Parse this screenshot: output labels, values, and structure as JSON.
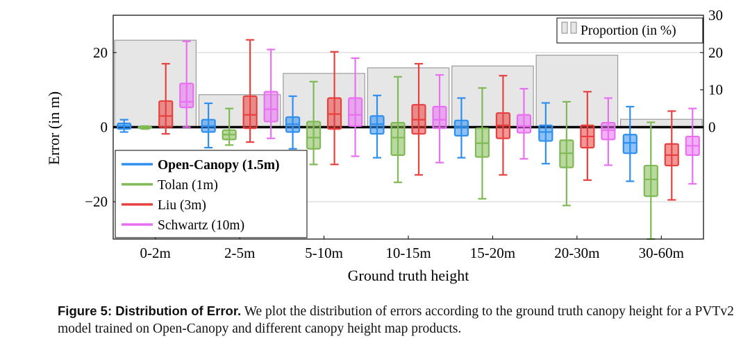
{
  "chart_data": {
    "type": "box",
    "xlabel": "Ground truth height",
    "ylabel": "Error (in m)",
    "ylim": [
      -30,
      30
    ],
    "yticks": [
      -20,
      0,
      20
    ],
    "y2lim": [
      -30,
      30
    ],
    "y2ticks": [
      0,
      10,
      20,
      30
    ],
    "categories": [
      "0-2m",
      "2-5m",
      "5-10m",
      "10-15m",
      "15-20m",
      "20-30m",
      "30-60m"
    ],
    "proportion": {
      "name": "Proportion (in %)",
      "color": "#e6e6e6",
      "values": [
        23.3,
        8.7,
        14.4,
        15.9,
        16.4,
        19.3,
        2.1
      ]
    },
    "legend": {
      "title": "Proportion (in %)",
      "placement": "top-right"
    },
    "series": [
      {
        "name": "Open-Canopy (1.5m)",
        "color": "#2e8ff0",
        "bold": true,
        "boxes": [
          {
            "whislo": -1.3,
            "q1": -0.5,
            "med": 0.3,
            "q3": 1.0,
            "whishi": 2.0
          },
          {
            "whislo": -5.5,
            "q1": -1.3,
            "med": 0.3,
            "q3": 2.0,
            "whishi": 6.4
          },
          {
            "whislo": -5.8,
            "q1": -1.3,
            "med": 0.8,
            "q3": 2.7,
            "whishi": 8.3
          },
          {
            "whislo": -8.2,
            "q1": -1.8,
            "med": 0.8,
            "q3": 3.0,
            "whishi": 8.5
          },
          {
            "whislo": -8.2,
            "q1": -2.3,
            "med": 0.0,
            "q3": 1.8,
            "whishi": 7.8
          },
          {
            "whislo": -9.8,
            "q1": -3.7,
            "med": -1.3,
            "q3": 0.5,
            "whishi": 6.5
          },
          {
            "whislo": -14.5,
            "q1": -7.0,
            "med": -4.2,
            "q3": -2.0,
            "whishi": 5.5
          }
        ]
      },
      {
        "name": "Tolan (1m)",
        "color": "#7fb954",
        "bold": false,
        "boxes": [
          {
            "whislo": -0.5,
            "q1": -0.3,
            "med": -0.1,
            "q3": 0.1,
            "whishi": 0.3
          },
          {
            "whislo": -4.8,
            "q1": -3.3,
            "med": -2.0,
            "q3": -0.8,
            "whishi": 5.0
          },
          {
            "whislo": -10.0,
            "q1": -5.8,
            "med": -2.8,
            "q3": 1.5,
            "whishi": 12.2
          },
          {
            "whislo": -14.8,
            "q1": -7.5,
            "med": -2.8,
            "q3": 1.2,
            "whishi": 13.5
          },
          {
            "whislo": -19.2,
            "q1": -8.0,
            "med": -4.3,
            "q3": -0.3,
            "whishi": 10.5
          },
          {
            "whislo": -21.0,
            "q1": -10.8,
            "med": -7.0,
            "q3": -3.5,
            "whishi": 6.8
          },
          {
            "whislo": -30.0,
            "q1": -18.5,
            "med": -14.0,
            "q3": -10.3,
            "whishi": 1.3
          }
        ]
      },
      {
        "name": "Liu (3m)",
        "color": "#e8403f",
        "bold": false,
        "boxes": [
          {
            "whislo": -1.8,
            "q1": 0.0,
            "med": 3.0,
            "q3": 7.0,
            "whishi": 17.0
          },
          {
            "whislo": -4.0,
            "q1": -0.3,
            "med": 3.3,
            "q3": 8.3,
            "whishi": 23.4
          },
          {
            "whislo": -10.0,
            "q1": -0.5,
            "med": 3.5,
            "q3": 7.8,
            "whishi": 20.2
          },
          {
            "whislo": -12.8,
            "q1": -1.8,
            "med": 2.0,
            "q3": 6.0,
            "whishi": 17.0
          },
          {
            "whislo": -12.8,
            "q1": -3.0,
            "med": 0.5,
            "q3": 3.8,
            "whishi": 13.8
          },
          {
            "whislo": -14.2,
            "q1": -5.5,
            "med": -2.5,
            "q3": 0.5,
            "whishi": 9.5
          },
          {
            "whislo": -19.5,
            "q1": -10.3,
            "med": -7.5,
            "q3": -4.5,
            "whishi": 4.3
          }
        ]
      },
      {
        "name": "Schwartz (10m)",
        "color": "#e96ff2",
        "bold": false,
        "boxes": [
          {
            "whislo": 0.0,
            "q1": 5.3,
            "med": 6.8,
            "q3": 11.7,
            "whishi": 23.0
          },
          {
            "whislo": -3.0,
            "q1": 1.5,
            "med": 4.8,
            "q3": 9.5,
            "whishi": 20.8
          },
          {
            "whislo": -7.8,
            "q1": 0.3,
            "med": 3.3,
            "q3": 7.8,
            "whishi": 18.5
          },
          {
            "whislo": -9.5,
            "q1": -0.3,
            "med": 2.0,
            "q3": 5.5,
            "whishi": 14.0
          },
          {
            "whislo": -8.5,
            "q1": -1.5,
            "med": 0.3,
            "q3": 3.3,
            "whishi": 10.3
          },
          {
            "whislo": -10.2,
            "q1": -3.3,
            "med": -0.8,
            "q3": 1.2,
            "whishi": 7.8
          },
          {
            "whislo": -15.2,
            "q1": -7.5,
            "med": -5.0,
            "q3": -2.5,
            "whishi": 5.0
          }
        ]
      }
    ]
  },
  "caption": {
    "label": "Figure 5: Distribution of Error.",
    "text": "We plot the distribution of errors according to the ground truth canopy height for a PVTv2 model trained on Open-Canopy and different canopy height map products."
  }
}
